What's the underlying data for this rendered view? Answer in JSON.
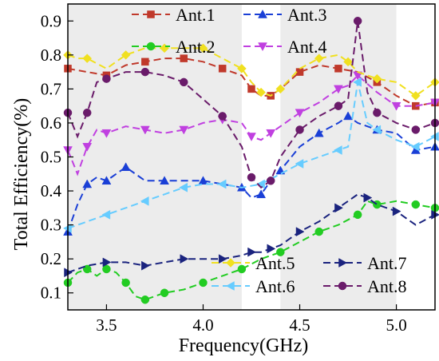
{
  "chart_data": {
    "type": "line",
    "title": "",
    "xlabel": "Frequency(GHz)",
    "ylabel": "Total Efficiency(%)",
    "xlim": [
      3.3,
      5.2
    ],
    "ylim": [
      0.05,
      0.95
    ],
    "xticks": [
      3.5,
      4.0,
      4.5,
      5.0
    ],
    "xtick_labels": [
      "3.5",
      "4.0",
      "4.5",
      "5.0"
    ],
    "yticks": [
      0.1,
      0.2,
      0.3,
      0.4,
      0.5,
      0.6,
      0.7,
      0.8,
      0.9
    ],
    "ytick_labels": [
      "0.1",
      "0.2",
      "0.3",
      "0.4",
      "0.5",
      "0.6",
      "0.7",
      "0.8",
      "0.9"
    ],
    "shaded_bands": [
      [
        3.3,
        4.2
      ],
      [
        4.4,
        5.0
      ]
    ],
    "grid": false,
    "legend_placement": "top and bottom, inside plot",
    "series": [
      {
        "name": "Ant.1",
        "color": "#c0392b",
        "marker": "square",
        "x": [
          3.3,
          3.4,
          3.5,
          3.6,
          3.7,
          3.8,
          3.9,
          4.0,
          4.1,
          4.2,
          4.25,
          4.3,
          4.35,
          4.4,
          4.5,
          4.6,
          4.7,
          4.8,
          4.9,
          5.0,
          5.1,
          5.2
        ],
        "y": [
          0.76,
          0.75,
          0.74,
          0.77,
          0.78,
          0.79,
          0.79,
          0.78,
          0.76,
          0.74,
          0.7,
          0.68,
          0.68,
          0.7,
          0.75,
          0.77,
          0.76,
          0.75,
          0.72,
          0.68,
          0.65,
          0.66
        ]
      },
      {
        "name": "Ant.2",
        "color": "#22cc22",
        "marker": "circle",
        "x": [
          3.3,
          3.35,
          3.4,
          3.45,
          3.5,
          3.55,
          3.6,
          3.65,
          3.7,
          3.75,
          3.8,
          3.9,
          4.0,
          4.1,
          4.2,
          4.3,
          4.4,
          4.5,
          4.6,
          4.7,
          4.8,
          4.85,
          4.9,
          5.0,
          5.1,
          5.2
        ],
        "y": [
          0.13,
          0.16,
          0.17,
          0.15,
          0.17,
          0.16,
          0.13,
          0.09,
          0.08,
          0.09,
          0.1,
          0.11,
          0.13,
          0.15,
          0.17,
          0.2,
          0.22,
          0.25,
          0.28,
          0.3,
          0.33,
          0.37,
          0.36,
          0.37,
          0.36,
          0.35
        ]
      },
      {
        "name": "Ant.3",
        "color": "#1a3fd6",
        "marker": "triangle-up",
        "x": [
          3.3,
          3.35,
          3.4,
          3.45,
          3.5,
          3.55,
          3.6,
          3.7,
          3.8,
          3.9,
          4.0,
          4.1,
          4.2,
          4.25,
          4.3,
          4.35,
          4.4,
          4.5,
          4.6,
          4.7,
          4.75,
          4.8,
          4.9,
          5.0,
          5.1,
          5.2
        ],
        "y": [
          0.28,
          0.36,
          0.42,
          0.44,
          0.43,
          0.45,
          0.47,
          0.43,
          0.43,
          0.43,
          0.43,
          0.42,
          0.41,
          0.38,
          0.39,
          0.43,
          0.46,
          0.53,
          0.57,
          0.6,
          0.62,
          0.6,
          0.58,
          0.57,
          0.52,
          0.53
        ]
      },
      {
        "name": "Ant.4",
        "color": "#c040e0",
        "marker": "triangle-down",
        "x": [
          3.3,
          3.35,
          3.4,
          3.45,
          3.5,
          3.6,
          3.7,
          3.8,
          3.9,
          4.0,
          4.1,
          4.2,
          4.25,
          4.3,
          4.35,
          4.4,
          4.5,
          4.6,
          4.7,
          4.75,
          4.8,
          4.9,
          5.0,
          5.1,
          5.2
        ],
        "y": [
          0.52,
          0.45,
          0.53,
          0.58,
          0.57,
          0.59,
          0.58,
          0.57,
          0.58,
          0.6,
          0.61,
          0.6,
          0.56,
          0.55,
          0.57,
          0.59,
          0.63,
          0.66,
          0.7,
          0.71,
          0.74,
          0.69,
          0.65,
          0.65,
          0.66
        ]
      },
      {
        "name": "Ant.5",
        "color": "#f0e020",
        "marker": "diamond",
        "x": [
          3.3,
          3.35,
          3.4,
          3.5,
          3.6,
          3.7,
          3.8,
          3.9,
          4.0,
          4.1,
          4.2,
          4.25,
          4.3,
          4.35,
          4.4,
          4.5,
          4.6,
          4.7,
          4.75,
          4.8,
          4.9,
          5.0,
          5.1,
          5.2
        ],
        "y": [
          0.8,
          0.79,
          0.79,
          0.76,
          0.8,
          0.82,
          0.82,
          0.82,
          0.82,
          0.79,
          0.76,
          0.72,
          0.69,
          0.68,
          0.7,
          0.76,
          0.79,
          0.8,
          0.78,
          0.75,
          0.73,
          0.72,
          0.68,
          0.72
        ]
      },
      {
        "name": "Ant.6",
        "color": "#66ccff",
        "marker": "triangle-left",
        "x": [
          3.3,
          3.4,
          3.5,
          3.6,
          3.7,
          3.8,
          3.9,
          4.0,
          4.1,
          4.2,
          4.3,
          4.4,
          4.5,
          4.6,
          4.7,
          4.75,
          4.8,
          4.85,
          4.9,
          5.0,
          5.1,
          5.2
        ],
        "y": [
          0.29,
          0.31,
          0.33,
          0.35,
          0.37,
          0.39,
          0.41,
          0.42,
          0.42,
          0.41,
          0.42,
          0.45,
          0.48,
          0.5,
          0.52,
          0.53,
          0.72,
          0.6,
          0.58,
          0.55,
          0.53,
          0.56
        ]
      },
      {
        "name": "Ant.7",
        "color": "#1a237e",
        "marker": "triangle-right",
        "x": [
          3.3,
          3.4,
          3.5,
          3.6,
          3.7,
          3.8,
          3.9,
          4.0,
          4.1,
          4.2,
          4.25,
          4.3,
          4.35,
          4.4,
          4.5,
          4.6,
          4.7,
          4.8,
          4.85,
          4.9,
          5.0,
          5.1,
          5.2
        ],
        "y": [
          0.16,
          0.18,
          0.19,
          0.19,
          0.18,
          0.19,
          0.2,
          0.2,
          0.2,
          0.21,
          0.22,
          0.22,
          0.23,
          0.24,
          0.28,
          0.31,
          0.35,
          0.39,
          0.38,
          0.36,
          0.34,
          0.3,
          0.33
        ]
      },
      {
        "name": "Ant.8",
        "color": "#6a1b6a",
        "marker": "circle",
        "x": [
          3.3,
          3.35,
          3.4,
          3.45,
          3.5,
          3.6,
          3.7,
          3.8,
          3.9,
          4.0,
          4.1,
          4.2,
          4.25,
          4.3,
          4.35,
          4.4,
          4.5,
          4.6,
          4.7,
          4.75,
          4.8,
          4.85,
          4.9,
          5.0,
          5.1,
          5.2
        ],
        "y": [
          0.63,
          0.56,
          0.63,
          0.72,
          0.73,
          0.75,
          0.75,
          0.74,
          0.72,
          0.67,
          0.62,
          0.53,
          0.44,
          0.41,
          0.43,
          0.5,
          0.58,
          0.62,
          0.65,
          0.67,
          0.9,
          0.69,
          0.63,
          0.6,
          0.58,
          0.6
        ]
      }
    ]
  }
}
